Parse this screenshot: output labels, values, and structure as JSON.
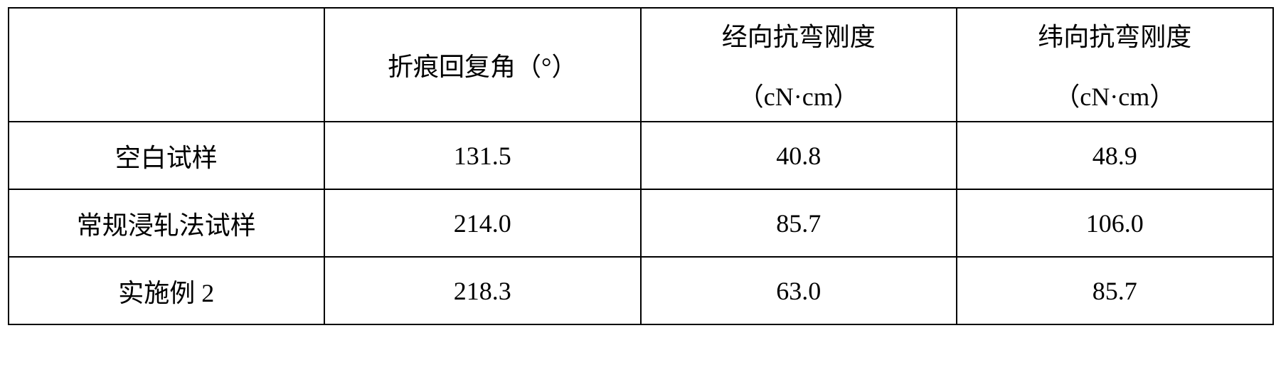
{
  "table": {
    "type": "table",
    "background_color": "#ffffff",
    "border_color": "#000000",
    "text_color": "#000000",
    "font_size_pt": 27,
    "columns": [
      {
        "key": "sample",
        "header": "",
        "align": "center",
        "width_pct": 25
      },
      {
        "key": "crease_recovery",
        "header_line1": "折痕回复角（°）",
        "header_line2": "",
        "align": "center",
        "width_pct": 25
      },
      {
        "key": "warp_stiffness",
        "header_line1": "经向抗弯刚度",
        "header_line2": "（cN·cm）",
        "align": "center",
        "width_pct": 25
      },
      {
        "key": "weft_stiffness",
        "header_line1": "纬向抗弯刚度",
        "header_line2": "（cN·cm）",
        "align": "center",
        "width_pct": 25
      }
    ],
    "rows": [
      {
        "sample": "空白试样",
        "crease_recovery": "131.5",
        "warp_stiffness": "40.8",
        "weft_stiffness": "48.9"
      },
      {
        "sample": "常规浸轧法试样",
        "crease_recovery": "214.0",
        "warp_stiffness": "85.7",
        "weft_stiffness": "106.0"
      },
      {
        "sample": "实施例 2",
        "crease_recovery": "218.3",
        "warp_stiffness": "63.0",
        "weft_stiffness": "85.7"
      }
    ]
  }
}
